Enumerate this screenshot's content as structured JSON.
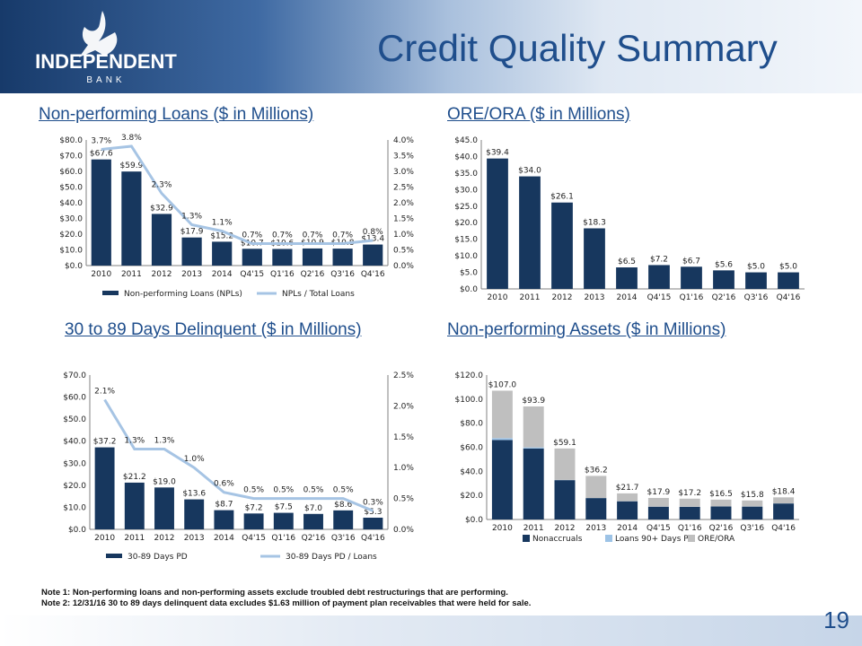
{
  "header": {
    "title": "Credit Quality Summary"
  },
  "logo": {
    "name": "INDEPENDENT",
    "sub": "BANK"
  },
  "charts": {
    "npl": {
      "title": "Non-performing Loans ($ in Millions)"
    },
    "ore": {
      "title": "ORE/ORA ($ in Millions)"
    },
    "dpd": {
      "title": "30 to 89 Days Delinquent ($ in Millions)"
    },
    "npa": {
      "title": "Non-performing Assets ($ in Millions)"
    }
  },
  "notes": {
    "note1": "Note 1: Non-performing loans and non-performing assets exclude troubled debt restructurings that are performing.",
    "note2": "Note 2: 12/31/16 30 to 89 days delinquent data excludes $1.63 million of payment plan receivables that were held for sale."
  },
  "page": {
    "number": "19"
  },
  "colors": {
    "navy": "#17375e",
    "line": "#a6c4e4",
    "gray": "#bfbfbf",
    "loans90": "#9dc3e6"
  },
  "chart_data": [
    {
      "id": "npl",
      "type": "bar",
      "categories": [
        "2010",
        "2011",
        "2012",
        "2013",
        "2014",
        "Q4'15",
        "Q1'16",
        "Q2'16",
        "Q3'16",
        "Q4'16"
      ],
      "series": [
        {
          "name": "Non-performing Loans (NPLs)",
          "values": [
            67.6,
            59.9,
            32.9,
            17.9,
            15.2,
            10.7,
            10.6,
            10.9,
            10.8,
            13.4
          ],
          "labels": [
            "$67.6",
            "$59.9",
            "$32.9",
            "$17.9",
            "$15.2",
            "$10.7",
            "$10.6",
            "$10.9",
            "$10.8",
            "$13.4"
          ]
        },
        {
          "name": "NPLs / Total Loans",
          "type": "line",
          "axis": "right",
          "values": [
            3.7,
            3.8,
            2.3,
            1.3,
            1.1,
            0.7,
            0.7,
            0.7,
            0.7,
            0.8
          ],
          "labels": [
            "3.7%",
            "3.8%",
            "2.3%",
            "1.3%",
            "1.1%",
            "0.7%",
            "0.7%",
            "0.7%",
            "0.7%",
            "0.8%"
          ]
        }
      ],
      "ylim": [
        0,
        80
      ],
      "yticks": [
        "$0.0",
        "$10.0",
        "$20.0",
        "$30.0",
        "$40.0",
        "$50.0",
        "$60.0",
        "$70.0",
        "$80.0"
      ],
      "y2lim": [
        0,
        4
      ],
      "y2ticks": [
        "0.0%",
        "0.5%",
        "1.0%",
        "1.5%",
        "2.0%",
        "2.5%",
        "3.0%",
        "3.5%",
        "4.0%"
      ],
      "legend": "bottom"
    },
    {
      "id": "ore",
      "type": "bar",
      "categories": [
        "2010",
        "2011",
        "2012",
        "2013",
        "2014",
        "Q4'15",
        "Q1'16",
        "Q2'16",
        "Q3'16",
        "Q4'16"
      ],
      "series": [
        {
          "name": "",
          "values": [
            39.4,
            34.0,
            26.1,
            18.3,
            6.5,
            7.2,
            6.7,
            5.6,
            5.0,
            5.0
          ],
          "labels": [
            "$39.4",
            "$34.0",
            "$26.1",
            "$18.3",
            "$6.5",
            "$7.2",
            "$6.7",
            "$5.6",
            "$5.0",
            "$5.0"
          ]
        }
      ],
      "ylim": [
        0,
        45
      ],
      "yticks": [
        "$0.0",
        "$5.0",
        "$10.0",
        "$15.0",
        "$20.0",
        "$25.0",
        "$30.0",
        "$35.0",
        "$40.0",
        "$45.0"
      ]
    },
    {
      "id": "dpd",
      "type": "bar",
      "categories": [
        "2010",
        "2011",
        "2012",
        "2013",
        "2014",
        "Q4'15",
        "Q1'16",
        "Q2'16",
        "Q3'16",
        "Q4'16"
      ],
      "series": [
        {
          "name": "30-89 Days PD",
          "values": [
            37.2,
            21.2,
            19.0,
            13.6,
            8.7,
            7.2,
            7.5,
            7.0,
            8.6,
            5.3
          ],
          "labels": [
            "$37.2",
            "$21.2",
            "$19.0",
            "$13.6",
            "$8.7",
            "$7.2",
            "$7.5",
            "$7.0",
            "$8.6",
            "$5.3"
          ]
        },
        {
          "name": "30-89 Days PD / Loans",
          "type": "line",
          "axis": "right",
          "values": [
            2.1,
            1.3,
            1.3,
            1.0,
            0.6,
            0.5,
            0.5,
            0.5,
            0.5,
            0.3
          ],
          "labels": [
            "2.1%",
            "1.3%",
            "1.3%",
            "1.0%",
            "0.6%",
            "0.5%",
            "0.5%",
            "0.5%",
            "0.5%",
            "0.3%"
          ]
        }
      ],
      "ylim": [
        0,
        70
      ],
      "yticks": [
        "$0.0",
        "$10.0",
        "$20.0",
        "$30.0",
        "$40.0",
        "$50.0",
        "$60.0",
        "$70.0"
      ],
      "y2lim": [
        0,
        2.5
      ],
      "y2ticks": [
        "0.0%",
        "0.5%",
        "1.0%",
        "1.5%",
        "2.0%",
        "2.5%"
      ],
      "legend": "bottom"
    },
    {
      "id": "npa",
      "type": "bar",
      "stacked": true,
      "categories": [
        "2010",
        "2011",
        "2012",
        "2013",
        "2014",
        "Q4'15",
        "Q1'16",
        "Q2'16",
        "Q3'16",
        "Q4'16"
      ],
      "series": [
        {
          "name": "Nonaccruals",
          "values": [
            66.0,
            59.0,
            32.7,
            17.8,
            15.1,
            10.6,
            10.5,
            10.8,
            10.7,
            13.3
          ]
        },
        {
          "name": "Loans 90+ Days PD",
          "values": [
            1.6,
            0.9,
            0.2,
            0.1,
            0.1,
            0.1,
            0.1,
            0.1,
            0.1,
            0.1
          ]
        },
        {
          "name": "ORE/ORA",
          "values": [
            39.4,
            34.0,
            26.1,
            18.3,
            6.5,
            7.2,
            6.7,
            5.6,
            5.0,
            5.0
          ]
        }
      ],
      "totals": [
        "$107.0",
        "$93.9",
        "$59.1",
        "$36.2",
        "$21.7",
        "$17.9",
        "$17.2",
        "$16.5",
        "$15.8",
        "$18.4"
      ],
      "ylim": [
        0,
        120
      ],
      "yticks": [
        "$0.0",
        "$20.0",
        "$40.0",
        "$60.0",
        "$80.0",
        "$100.0",
        "$120.0"
      ],
      "legend": "bottom"
    }
  ]
}
